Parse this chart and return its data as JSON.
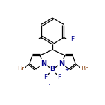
{
  "bg_color": "#ffffff",
  "bond_color": "#000000",
  "atom_colors": {
    "Br": "#8B4513",
    "N": "#00008B",
    "B": "#00008B",
    "F": "#00008B",
    "I": "#8B4513",
    "C": "#000000"
  },
  "figsize": [
    1.52,
    1.52
  ],
  "dpi": 100,
  "lw": 0.9
}
